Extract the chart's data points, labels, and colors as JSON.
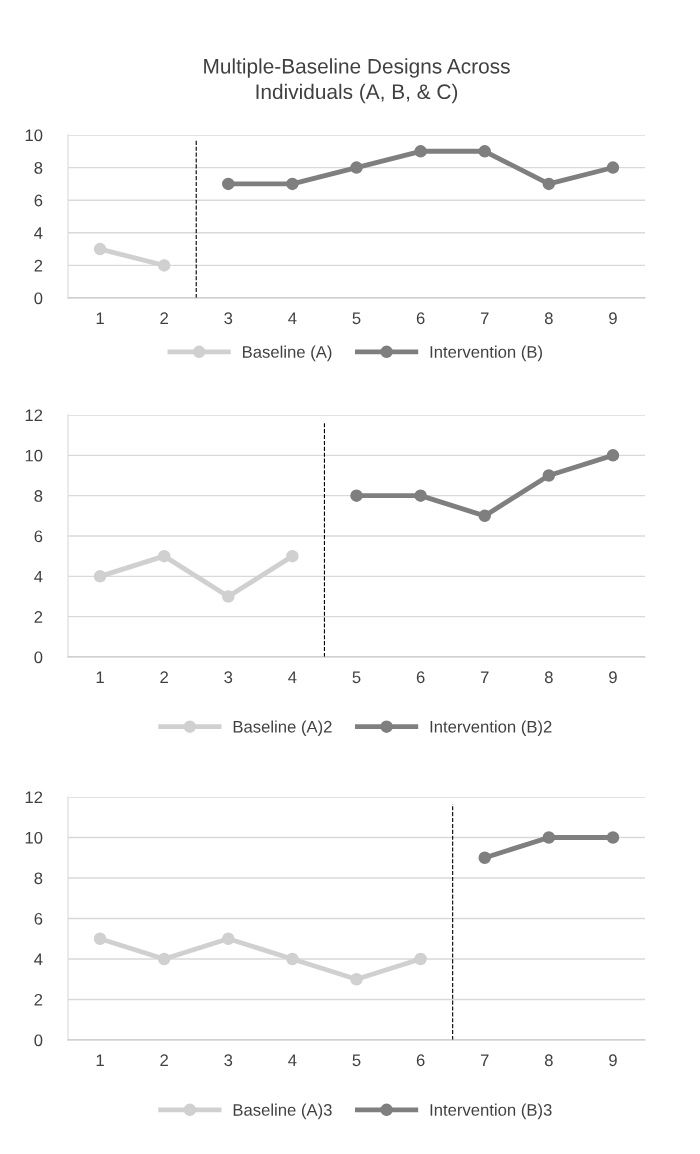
{
  "chart_data": [
    {
      "type": "line",
      "title": "Multiple-Baseline Designs Across\nIndividuals (A, B, & C)",
      "xlim": [
        0.5,
        9.5
      ],
      "xticks": [
        1,
        2,
        3,
        4,
        5,
        6,
        7,
        8,
        9
      ],
      "ylim": [
        0,
        10
      ],
      "yticks": [
        0,
        2,
        4,
        6,
        8,
        10
      ],
      "grid": "y",
      "legend": "bottom",
      "marker": "circle",
      "line_style": "solid",
      "series": [
        {
          "name": "Baseline (A)",
          "color": "#d0d0d0",
          "x": [
            1,
            2
          ],
          "values": [
            3,
            2
          ]
        },
        {
          "name": "Intervention (B)",
          "color": "#7f7f7f",
          "x": [
            3,
            4,
            5,
            6,
            7,
            8,
            9
          ],
          "values": [
            7,
            7,
            8,
            9,
            9,
            7,
            8
          ]
        }
      ],
      "ref_lines": [
        {
          "axis": "x",
          "value": 2.5,
          "color": "#000000",
          "line_style": "dashed"
        }
      ]
    },
    {
      "type": "line",
      "xlim": [
        0.5,
        9.5
      ],
      "xticks": [
        1,
        2,
        3,
        4,
        5,
        6,
        7,
        8,
        9
      ],
      "ylim": [
        0,
        12
      ],
      "yticks": [
        0,
        2,
        4,
        6,
        8,
        10,
        12
      ],
      "grid": "y",
      "legend": "bottom",
      "marker": "circle",
      "line_style": "solid",
      "series": [
        {
          "name": "Baseline (A)2",
          "color": "#d0d0d0",
          "x": [
            1,
            2,
            3,
            4
          ],
          "values": [
            4,
            5,
            3,
            5
          ]
        },
        {
          "name": "Intervention (B)2",
          "color": "#7f7f7f",
          "x": [
            5,
            6,
            7,
            8,
            9
          ],
          "values": [
            8,
            8,
            7,
            9,
            10
          ]
        }
      ],
      "ref_lines": [
        {
          "axis": "x",
          "value": 4.5,
          "color": "#000000",
          "line_style": "dashed"
        }
      ]
    },
    {
      "type": "line",
      "xlim": [
        0.5,
        9.5
      ],
      "xticks": [
        1,
        2,
        3,
        4,
        5,
        6,
        7,
        8,
        9
      ],
      "ylim": [
        0,
        12
      ],
      "yticks": [
        0,
        2,
        4,
        6,
        8,
        10,
        12
      ],
      "grid": "y",
      "legend": "bottom",
      "marker": "circle",
      "line_style": "solid",
      "series": [
        {
          "name": "Baseline (A)3",
          "color": "#d0d0d0",
          "x": [
            1,
            2,
            3,
            4,
            5,
            6
          ],
          "values": [
            5,
            4,
            5,
            4,
            3,
            4
          ]
        },
        {
          "name": "Intervention (B)3",
          "color": "#7f7f7f",
          "x": [
            7,
            8,
            9
          ],
          "values": [
            9,
            10,
            10
          ]
        }
      ],
      "ref_lines": [
        {
          "axis": "x",
          "value": 6.5,
          "color": "#000000",
          "line_style": "dashed"
        }
      ]
    }
  ]
}
